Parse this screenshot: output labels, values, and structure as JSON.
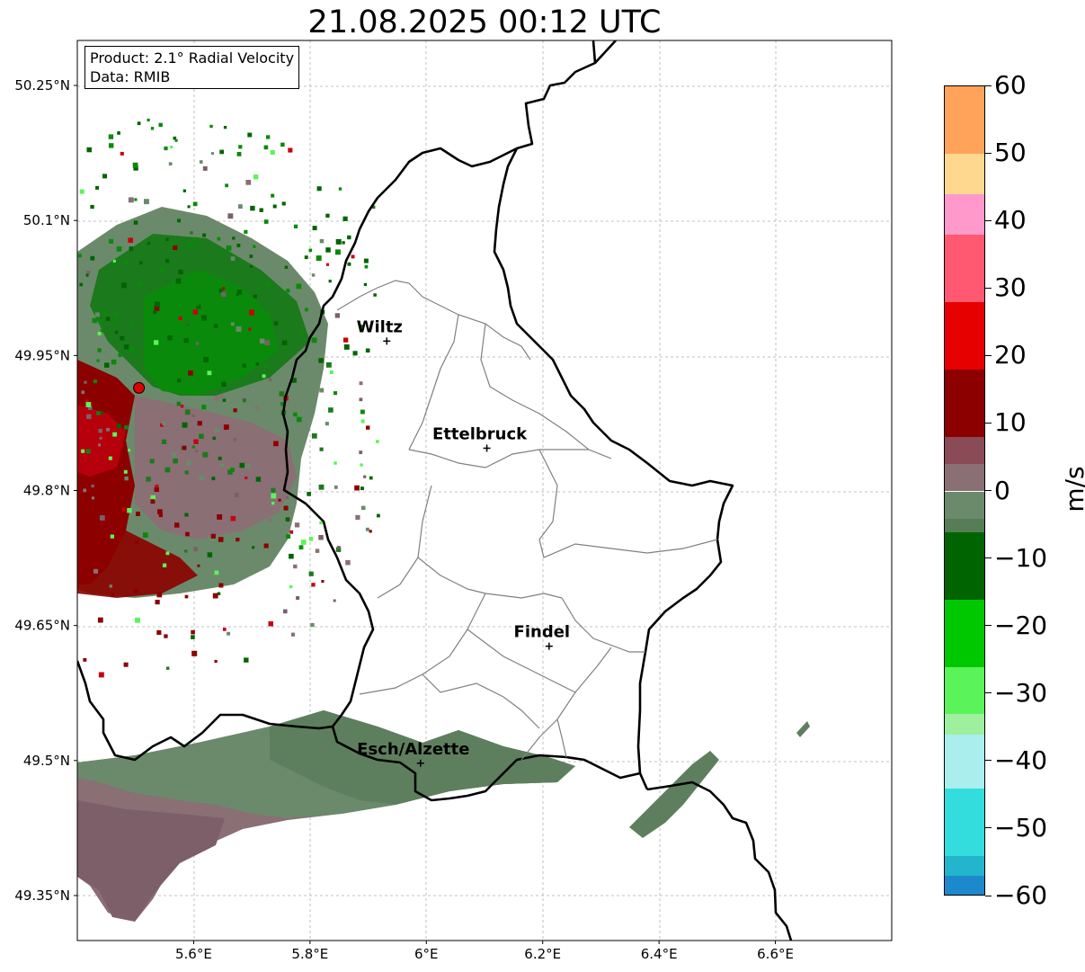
{
  "title": "21.08.2025 00:12 UTC",
  "info": {
    "product": "Product: 2.1° Radial Velocity",
    "data": "Data: RMIB"
  },
  "map": {
    "x_ticks": [
      "5.6°E",
      "5.8°E",
      "6°E",
      "6.2°E",
      "6.4°E",
      "6.6°E"
    ],
    "y_ticks": [
      "50.25°N",
      "50.1°N",
      "49.95°N",
      "49.8°N",
      "49.65°N",
      "49.5°N",
      "49.35°N"
    ],
    "lon_range": [
      5.4,
      6.8
    ],
    "lat_range": [
      49.3,
      50.3
    ],
    "radar_site": {
      "lon": 5.506,
      "lat": 49.914
    },
    "cities": [
      {
        "name": "Wiltz",
        "lon": 5.932,
        "lat": 49.966
      },
      {
        "name": "Ettelbruck",
        "lon": 6.104,
        "lat": 49.847
      },
      {
        "name": "Findel",
        "lon": 6.211,
        "lat": 49.627
      },
      {
        "name": "Esch/Alzette",
        "lon": 5.99,
        "lat": 49.497
      }
    ]
  },
  "colorbar": {
    "unit": "m/s",
    "min": -60,
    "max": 60,
    "tick_labels": [
      "60",
      "50",
      "40",
      "30",
      "20",
      "10",
      "0",
      "−10",
      "−20",
      "−30",
      "−40",
      "−50",
      "−60"
    ],
    "color_stops": [
      {
        "from": 50,
        "to": 60,
        "color": "#ffa35a"
      },
      {
        "from": 44,
        "to": 50,
        "color": "#ffd88f"
      },
      {
        "from": 38,
        "to": 44,
        "color": "#ff99cc"
      },
      {
        "from": 28,
        "to": 38,
        "color": "#ff5870"
      },
      {
        "from": 18,
        "to": 28,
        "color": "#e60000"
      },
      {
        "from": 8,
        "to": 18,
        "color": "#8c0000"
      },
      {
        "from": 4,
        "to": 8,
        "color": "#8a4b56"
      },
      {
        "from": 0,
        "to": 4,
        "color": "#8a6f75"
      },
      {
        "from": -4,
        "to": 0,
        "color": "#6b8a6b"
      },
      {
        "from": -6,
        "to": -4,
        "color": "#567d56"
      },
      {
        "from": -16,
        "to": -6,
        "color": "#006400"
      },
      {
        "from": -26,
        "to": -16,
        "color": "#00c800"
      },
      {
        "from": -33,
        "to": -26,
        "color": "#5af45a"
      },
      {
        "from": -36,
        "to": -33,
        "color": "#9ef09e"
      },
      {
        "from": -44,
        "to": -36,
        "color": "#aaeeee"
      },
      {
        "from": -54,
        "to": -44,
        "color": "#33dddd"
      },
      {
        "from": -57,
        "to": -54,
        "color": "#22b5cc"
      },
      {
        "from": -60,
        "to": -57,
        "color": "#1e88cc"
      }
    ]
  }
}
